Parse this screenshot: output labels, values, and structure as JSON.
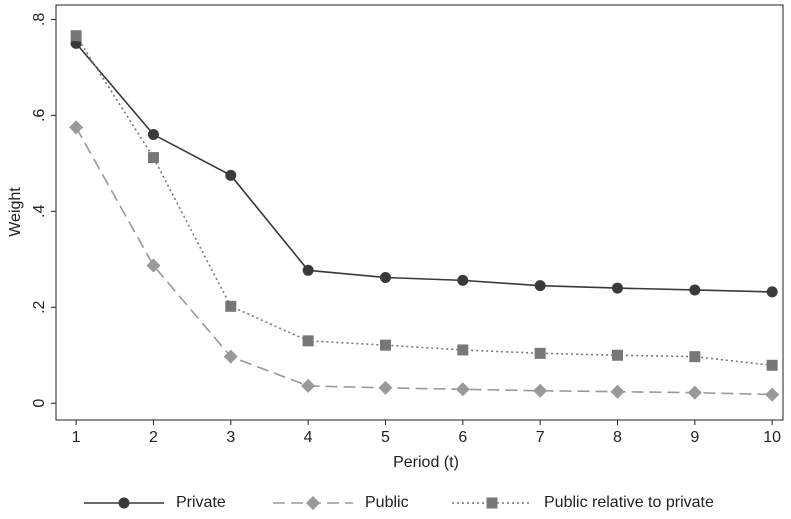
{
  "chart_data": {
    "type": "line",
    "x_label": "Period (t)",
    "y_label": "Weight",
    "x": [
      1,
      2,
      3,
      4,
      5,
      6,
      7,
      8,
      9,
      10
    ],
    "xlim": [
      0.74,
      10.14
    ],
    "xticks": [
      1,
      2,
      3,
      4,
      5,
      6,
      7,
      8,
      9,
      10
    ],
    "ylim": [
      -0.035,
      0.83
    ],
    "yticks": [
      0,
      {
        "value": 0.2,
        "label": ".2"
      },
      {
        "value": 0.4,
        "label": ".4"
      },
      {
        "value": 0.6,
        "label": ".6"
      },
      {
        "value": 0.8,
        "label": ".8"
      }
    ],
    "legend": "bottom",
    "series": [
      {
        "name": "Private",
        "color": "#3a3a3a",
        "marker": "circle",
        "dash": "solid",
        "values": [
          0.75,
          0.56,
          0.475,
          0.277,
          0.262,
          0.256,
          0.245,
          0.24,
          0.236,
          0.232
        ]
      },
      {
        "name": "Public",
        "color": "#999999",
        "marker": "diamond",
        "dash": "dash",
        "values": [
          0.575,
          0.287,
          0.097,
          0.036,
          0.032,
          0.029,
          0.026,
          0.024,
          0.022,
          0.018
        ]
      },
      {
        "name": "Public relative to private",
        "color": "#777777",
        "marker": "square",
        "dash": "dot",
        "values": [
          0.766,
          0.512,
          0.202,
          0.13,
          0.121,
          0.111,
          0.104,
          0.1,
          0.097,
          0.079
        ]
      }
    ]
  }
}
